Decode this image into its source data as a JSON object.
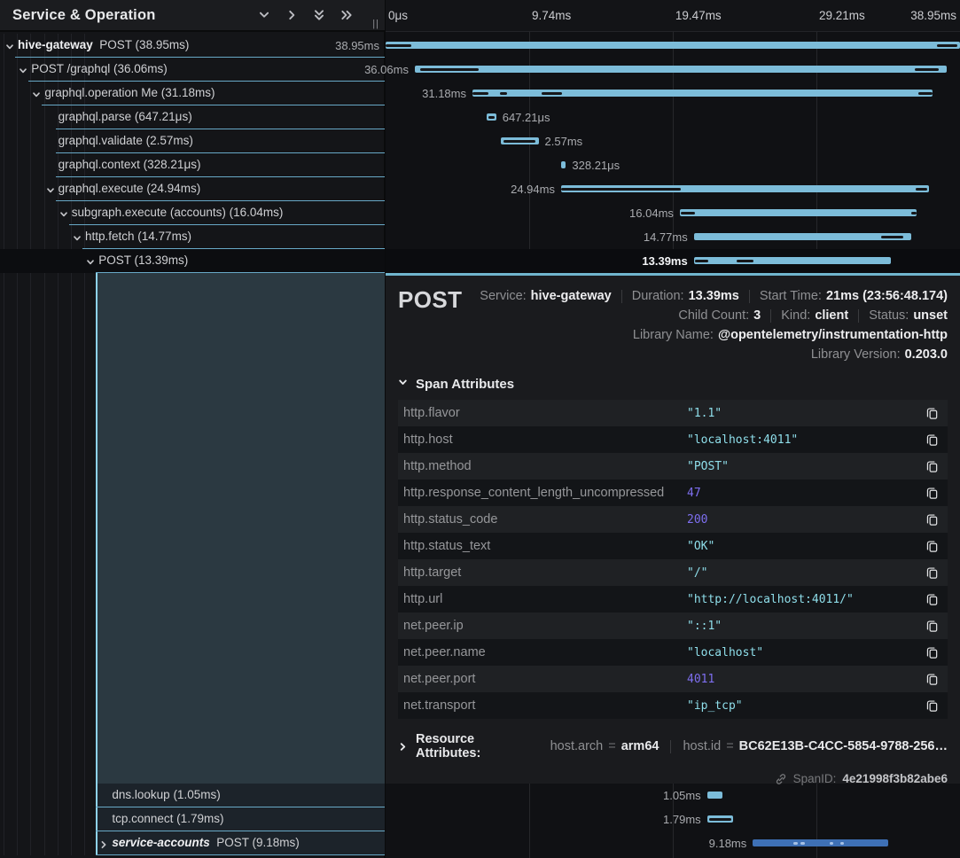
{
  "header": {
    "title": "Service & Operation",
    "icons": [
      "collapse-one-icon",
      "expand-one-icon",
      "collapse-all-icon",
      "expand-all-icon"
    ],
    "drag_handle": "||"
  },
  "timeline": {
    "total_ms": 38.95,
    "ticks": [
      {
        "label": "0μs",
        "ms": 0
      },
      {
        "label": "9.74ms",
        "ms": 9.74
      },
      {
        "label": "19.47ms",
        "ms": 19.47
      },
      {
        "label": "29.21ms",
        "ms": 29.21
      },
      {
        "label": "38.95ms",
        "ms": 38.95
      }
    ]
  },
  "tree": {
    "rows": [
      {
        "service": "hive-gateway",
        "name": "POST (38.95ms)",
        "depth": 0,
        "expander": "down",
        "selected": false,
        "bar": {
          "label": "38.95ms",
          "side": "left",
          "start_ms": 0,
          "dur_ms": 38.95,
          "color": "light",
          "marks": [
            [
              0.0,
              0.045
            ],
            [
              0.96,
              0.995
            ]
          ]
        }
      },
      {
        "service": null,
        "name": "POST /graphql (36.06ms)",
        "depth": 1,
        "expander": "down",
        "selected": false,
        "bar": {
          "label": "36.06ms",
          "side": "left",
          "start_ms": 1.98,
          "dur_ms": 36.06,
          "color": "light",
          "marks": [
            [
              0.01,
              0.12
            ],
            [
              0.94,
              0.985
            ]
          ]
        }
      },
      {
        "service": null,
        "name": "graphql.operation Me (31.18ms)",
        "depth": 2,
        "expander": "down",
        "selected": false,
        "bar": {
          "label": "31.18ms",
          "side": "left",
          "start_ms": 5.89,
          "dur_ms": 31.18,
          "color": "light",
          "marks": [
            [
              0.0,
              0.035
            ],
            [
              0.06,
              0.075
            ],
            [
              0.15,
              0.195
            ],
            [
              0.97,
              1.0
            ]
          ]
        }
      },
      {
        "service": null,
        "name": "graphql.parse (647.21μs)",
        "depth": 3,
        "expander": null,
        "selected": false,
        "bar": {
          "label": "647.21μs",
          "side": "right",
          "start_ms": 6.85,
          "dur_ms": 0.647,
          "color": "light",
          "marks": [
            [
              0.15,
              0.85
            ]
          ]
        }
      },
      {
        "service": null,
        "name": "graphql.validate (2.57ms)",
        "depth": 3,
        "expander": null,
        "selected": false,
        "bar": {
          "label": "2.57ms",
          "side": "right",
          "start_ms": 7.8,
          "dur_ms": 2.57,
          "color": "light",
          "marks": [
            [
              0.08,
              0.92
            ]
          ]
        }
      },
      {
        "service": null,
        "name": "graphql.context (328.21μs)",
        "depth": 3,
        "expander": null,
        "selected": false,
        "bar": {
          "label": "328.21μs",
          "side": "right",
          "start_ms": 11.9,
          "dur_ms": 0.328,
          "color": "light",
          "marks": []
        }
      },
      {
        "service": null,
        "name": "graphql.execute (24.94ms)",
        "depth": 3,
        "expander": "down",
        "selected": false,
        "bar": {
          "label": "24.94ms",
          "side": "left",
          "start_ms": 11.9,
          "dur_ms": 24.94,
          "color": "light",
          "marks": [
            [
              0.0,
              0.325
            ],
            [
              0.965,
              0.995
            ]
          ]
        }
      },
      {
        "service": null,
        "name": "subgraph.execute (accounts) (16.04ms)",
        "depth": 4,
        "expander": "down",
        "selected": false,
        "bar": {
          "label": "16.04ms",
          "side": "left",
          "start_ms": 19.95,
          "dur_ms": 16.04,
          "color": "light",
          "marks": [
            [
              0.005,
              0.065
            ],
            [
              0.98,
              1.0
            ]
          ]
        }
      },
      {
        "service": null,
        "name": "http.fetch (14.77ms)",
        "depth": 5,
        "expander": "down",
        "selected": false,
        "bar": {
          "label": "14.77ms",
          "side": "left",
          "start_ms": 20.9,
          "dur_ms": 14.77,
          "color": "light",
          "marks": [
            [
              0.86,
              0.96
            ]
          ]
        }
      },
      {
        "service": null,
        "name": "POST (13.39ms)",
        "depth": 6,
        "expander": "down",
        "selected": true,
        "bar": {
          "label": "13.39ms",
          "side": "left",
          "start_ms": 20.9,
          "dur_ms": 13.39,
          "color": "light",
          "marks": [
            [
              0.005,
              0.075
            ],
            [
              0.215,
              0.3
            ]
          ]
        }
      }
    ],
    "bottom_rows": [
      {
        "service": null,
        "name": "dns.lookup (1.05ms)",
        "depth": 7,
        "expander": null,
        "selected": false,
        "bar": {
          "label": "1.05ms",
          "side": "left",
          "start_ms": 21.8,
          "dur_ms": 1.05,
          "color": "light",
          "marks": []
        }
      },
      {
        "service": null,
        "name": "tcp.connect (1.79ms)",
        "depth": 7,
        "expander": null,
        "selected": false,
        "bar": {
          "label": "1.79ms",
          "side": "left",
          "start_ms": 21.8,
          "dur_ms": 1.79,
          "color": "light",
          "marks": [
            [
              0.08,
              0.92
            ]
          ]
        }
      },
      {
        "service": "service-accounts",
        "service_italic": true,
        "name": "POST (9.18ms)",
        "depth": 7,
        "expander": "right",
        "selected": false,
        "bar": {
          "label": "9.18ms",
          "side": "left",
          "start_ms": 24.9,
          "dur_ms": 9.18,
          "color": "blue",
          "marks": [
            [
              0.3,
              0.33
            ],
            [
              0.355,
              0.385
            ],
            [
              0.565,
              0.595
            ],
            [
              0.645,
              0.675
            ]
          ]
        }
      }
    ]
  },
  "detail": {
    "title": "POST",
    "meta": [
      [
        {
          "label": "Service:",
          "value": "hive-gateway"
        },
        {
          "label": "Duration:",
          "value": "13.39ms"
        },
        {
          "label": "Start Time:",
          "value": "21ms (23:56:48.174)"
        }
      ],
      [
        {
          "label": "Child Count:",
          "value": "3"
        },
        {
          "label": "Kind:",
          "value": "client"
        },
        {
          "label": "Status:",
          "value": "unset"
        }
      ],
      [
        {
          "label": "Library Name:",
          "value": "@opentelemetry/instrumentation-http"
        }
      ],
      [
        {
          "label": "Library Version:",
          "value": "0.203.0"
        }
      ]
    ],
    "section_label": "Span Attributes",
    "attributes": [
      {
        "key": "http.flavor",
        "value": "\"1.1\"",
        "type": "string"
      },
      {
        "key": "http.host",
        "value": "\"localhost:4011\"",
        "type": "string"
      },
      {
        "key": "http.method",
        "value": "\"POST\"",
        "type": "string"
      },
      {
        "key": "http.response_content_length_uncompressed",
        "value": "47",
        "type": "number"
      },
      {
        "key": "http.status_code",
        "value": "200",
        "type": "number"
      },
      {
        "key": "http.status_text",
        "value": "\"OK\"",
        "type": "string"
      },
      {
        "key": "http.target",
        "value": "\"/\"",
        "type": "string"
      },
      {
        "key": "http.url",
        "value": "\"http://localhost:4011/\"",
        "type": "string"
      },
      {
        "key": "net.peer.ip",
        "value": "\"::1\"",
        "type": "string"
      },
      {
        "key": "net.peer.name",
        "value": "\"localhost\"",
        "type": "string"
      },
      {
        "key": "net.peer.port",
        "value": "4011",
        "type": "number"
      },
      {
        "key": "net.transport",
        "value": "\"ip_tcp\"",
        "type": "string"
      }
    ],
    "resource": {
      "label": "Resource Attributes:",
      "pairs": [
        {
          "key": "host.arch",
          "value": "arm64"
        },
        {
          "key": "host.id",
          "value": "BC62E13B-C4CC-5854-9788-256…"
        }
      ]
    },
    "span_id": {
      "label": "SpanID:",
      "value": "4e21998f3b82abe6"
    }
  },
  "colors": {
    "accent_blue": "#8ed2ea",
    "bar_light": "#7cbcd9",
    "bar_blue": "#3e70b5",
    "string_value": "#8fdfeb",
    "number_value": "#7e6ff0",
    "row_underline": "#68a8c6"
  }
}
